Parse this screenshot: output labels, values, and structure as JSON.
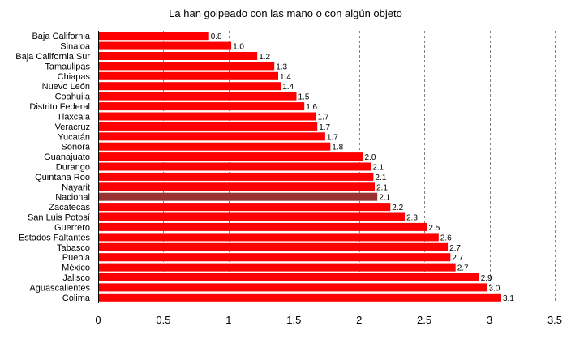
{
  "chart_data": {
    "type": "bar",
    "orientation": "horizontal",
    "title": "La han golpeado con las mano o con algún objeto",
    "xlabel": "",
    "ylabel": "",
    "xlim": [
      0,
      3.5
    ],
    "x_ticks": [
      "0",
      "0.5",
      "1",
      "1.5",
      "2",
      "2.5",
      "3",
      "3.5"
    ],
    "grid": "vertical dashed",
    "legend": "none",
    "colors": {
      "bar": "#ff0000",
      "highlight": "#993333",
      "grid": "#808080"
    },
    "categories": [
      "Baja California",
      "Sinaloa",
      "Baja California Sur",
      "Tamaulipas",
      "Chiapas",
      "Nuevo León",
      "Coahuila",
      "Distrito Federal",
      "Tlaxcala",
      "Veracruz",
      "Yucatán",
      "Sonora",
      "Guanajuato",
      "Durango",
      "Quintana Roo",
      "Nayarit",
      "Nacional",
      "Zacatecas",
      "San Luis Potosí",
      "Guerrero",
      "Estados Faltantes",
      "Tabasco",
      "Puebla",
      "México",
      "Jalisco",
      "Aguascalientes",
      "Colima"
    ],
    "values": [
      0.85,
      1.02,
      1.22,
      1.35,
      1.38,
      1.4,
      1.52,
      1.58,
      1.67,
      1.68,
      1.74,
      1.78,
      2.03,
      2.09,
      2.11,
      2.12,
      2.14,
      2.24,
      2.35,
      2.52,
      2.61,
      2.68,
      2.7,
      2.74,
      2.92,
      2.98,
      3.09
    ],
    "data_labels": [
      "0.8",
      "1.0",
      "1.2",
      "1.3",
      "1.4",
      "1.4",
      "1.5",
      "1.6",
      "1.7",
      "1.7",
      "1.7",
      "1.8",
      "2.0",
      "2.1",
      "2.1",
      "2.1",
      "2.1",
      "2.2",
      "2.3",
      "2.5",
      "2.6",
      "2.7",
      "2.7",
      "2.7",
      "2.9",
      "3.0",
      "3.1"
    ],
    "highlight_category": "Nacional"
  }
}
